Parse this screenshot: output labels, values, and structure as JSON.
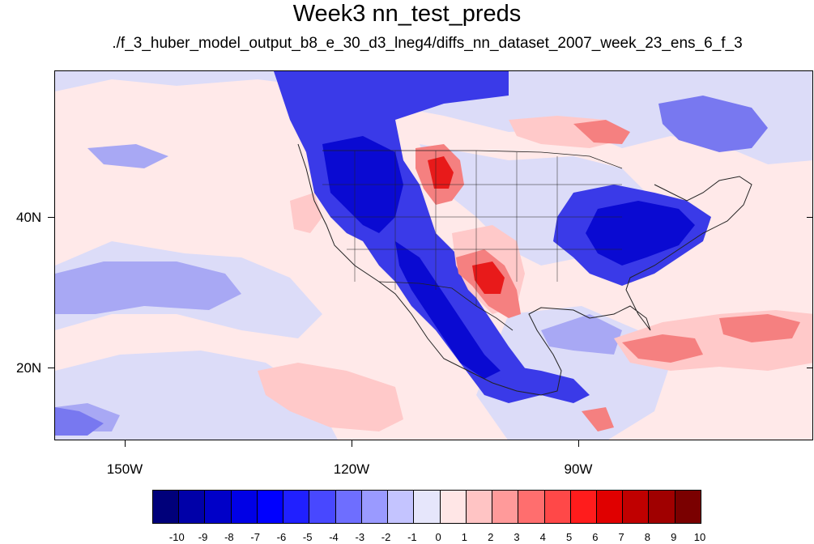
{
  "figure": {
    "title": "Week3 nn_test_preds",
    "subtitle": "./f_3_huber_model_output_b8_e_30_d3_lneg4/diffs_nn_dataset_2007_week_23_ens_6_f_3"
  },
  "axes": {
    "x_tick_labels": [
      "150W",
      "120W",
      "90W"
    ],
    "y_tick_labels": [
      "40N",
      "20N"
    ]
  },
  "colorbar": {
    "labels": [
      "-10",
      "-9",
      "-8",
      "-7",
      "-6",
      "-5",
      "-4",
      "-3",
      "-2",
      "-1",
      "0",
      "1",
      "2",
      "3",
      "4",
      "5",
      "6",
      "7",
      "8",
      "9",
      "10"
    ],
    "colors": [
      "#00007a",
      "#0000a8",
      "#0000c8",
      "#0000e6",
      "#0000ff",
      "#2020ff",
      "#4848ff",
      "#6e6eff",
      "#9a9aff",
      "#c4c4ff",
      "#e6e6fb",
      "#ffe6e6",
      "#ffc4c4",
      "#ff9a9a",
      "#ff6e6e",
      "#ff4848",
      "#ff1c1c",
      "#e00000",
      "#c00000",
      "#a00000",
      "#7a0000"
    ]
  },
  "map_colors": {
    "strong_blue": "#0a0ad2",
    "blue": "#3a3ae8",
    "mid_blue": "#7878f0",
    "light_blue": "#a8a8f4",
    "pale_blue": "#dcdcf8",
    "pale_pink": "#ffe9e9",
    "pink": "#ffc9c9",
    "red": "#f58080",
    "strong_red": "#e81a1a",
    "coastline": "#222222"
  }
}
